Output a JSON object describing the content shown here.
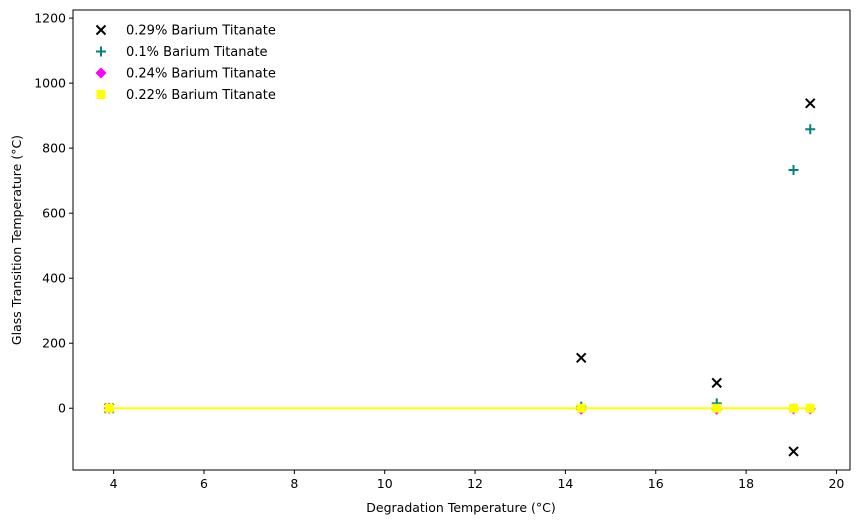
{
  "chart_data": {
    "type": "scatter",
    "xlabel": "Degradation Temperature (°C)",
    "ylabel": "Glass Transition Temperature (°C)",
    "xlim": [
      3.1,
      20.3
    ],
    "ylim": [
      -190,
      1225
    ],
    "xticks": [
      "4",
      "6",
      "8",
      "10",
      "12",
      "14",
      "16",
      "18",
      "20"
    ],
    "yticks": [
      "0",
      "200",
      "400",
      "600",
      "800",
      "1000",
      "1200"
    ],
    "grid": false,
    "legend_position": "top-left",
    "series": [
      {
        "name": "0.29% Barium Titanate",
        "marker": "x",
        "color": "#000000",
        "x": [
          3.9,
          14.35,
          17.35,
          19.05,
          19.42
        ],
        "y": [
          0,
          155,
          78,
          -133,
          938
        ]
      },
      {
        "name": "0.1% Barium Titanate",
        "marker": "+",
        "color": "#008080",
        "x": [
          3.9,
          14.35,
          17.35,
          19.05,
          19.42
        ],
        "y": [
          0,
          5,
          15,
          733,
          858
        ]
      },
      {
        "name": "0.24% Barium Titanate",
        "marker": "diamond",
        "color": "#ff00ff",
        "x": [
          3.9,
          14.35,
          17.35,
          19.05,
          19.42
        ],
        "y": [
          0,
          -3,
          -3,
          -2,
          -2
        ]
      },
      {
        "name": "0.22% Barium Titanate",
        "marker": "square",
        "color": "#ffff00",
        "x": [
          3.9,
          14.35,
          17.35,
          19.05,
          19.42
        ],
        "y": [
          0,
          0,
          0,
          0,
          0
        ],
        "line": true
      }
    ]
  }
}
